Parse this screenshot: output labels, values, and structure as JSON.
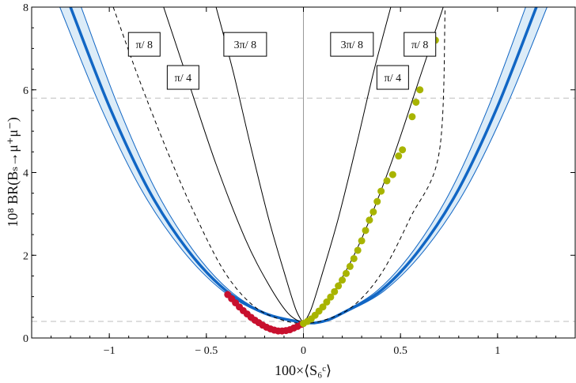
{
  "chart_data": {
    "type": "scatter",
    "title": "",
    "xlabel": "100×⟨S₆ᶜ⟩",
    "ylabel": "10⁸ BR(Bₛ→μ⁺μ⁻)",
    "xlim": [
      -1.4,
      1.4
    ],
    "ylim": [
      0,
      8
    ],
    "x_ticks": [
      -1,
      -0.5,
      0,
      0.5,
      1
    ],
    "x_tick_labels": [
      "−1",
      "− 0.5",
      "0",
      "0.5",
      "1"
    ],
    "y_ticks": [
      0,
      2,
      4,
      6,
      8
    ],
    "y_tick_labels": [
      "0",
      "2",
      "4",
      "6",
      "8"
    ],
    "reference_lines": {
      "horizontal_dashed_y": [
        0.4,
        5.8
      ],
      "vertical_solid_x": [
        0
      ]
    },
    "band": {
      "name": "",
      "color": "#1166c4",
      "fill": "#dcecf8",
      "center": [
        [
          -1.2,
          8.0
        ],
        [
          -1.0,
          5.6
        ],
        [
          -0.8,
          3.6
        ],
        [
          -0.6,
          2.15
        ],
        [
          -0.4,
          1.15
        ],
        [
          -0.2,
          0.6
        ],
        [
          0.0,
          0.38
        ],
        [
          0.1,
          0.4
        ],
        [
          0.2,
          0.6
        ],
        [
          0.4,
          1.15
        ],
        [
          0.6,
          2.15
        ],
        [
          0.8,
          3.6
        ],
        [
          1.0,
          5.6
        ],
        [
          1.2,
          8.0
        ]
      ],
      "half_width_x": [
        0.0,
        0.055
      ]
    },
    "curves": [
      {
        "label": "π/ 8",
        "side": "left",
        "style": "dashed",
        "points": [
          [
            -0.98,
            8.0
          ],
          [
            -0.85,
            6.3
          ],
          [
            -0.7,
            4.5
          ],
          [
            -0.55,
            2.9
          ],
          [
            -0.4,
            1.55
          ],
          [
            -0.25,
            0.75
          ],
          [
            -0.1,
            0.42
          ],
          [
            0.0,
            0.35
          ]
        ]
      },
      {
        "label": "π/ 4",
        "side": "left",
        "style": "solid",
        "points": [
          [
            -0.72,
            8.0
          ],
          [
            -0.6,
            6.3
          ],
          [
            -0.45,
            4.2
          ],
          [
            -0.3,
            2.4
          ],
          [
            -0.18,
            1.3
          ],
          [
            -0.08,
            0.6
          ],
          [
            0.0,
            0.35
          ]
        ]
      },
      {
        "label": "3π/ 8",
        "side": "left",
        "style": "solid",
        "points": [
          [
            -0.45,
            8.0
          ],
          [
            -0.36,
            6.4
          ],
          [
            -0.27,
            4.6
          ],
          [
            -0.18,
            2.9
          ],
          [
            -0.1,
            1.6
          ],
          [
            -0.04,
            0.7
          ],
          [
            0.0,
            0.35
          ]
        ]
      },
      {
        "label": "3π/ 8",
        "side": "right",
        "style": "solid",
        "points": [
          [
            0.0,
            0.35
          ],
          [
            0.04,
            0.7
          ],
          [
            0.1,
            1.6
          ],
          [
            0.18,
            2.9
          ],
          [
            0.27,
            4.6
          ],
          [
            0.36,
            6.4
          ],
          [
            0.45,
            8.0
          ]
        ]
      },
      {
        "label": "π/ 4",
        "side": "right",
        "style": "solid",
        "points": [
          [
            0.0,
            0.35
          ],
          [
            0.08,
            0.6
          ],
          [
            0.18,
            1.3
          ],
          [
            0.3,
            2.4
          ],
          [
            0.45,
            4.2
          ],
          [
            0.6,
            6.3
          ],
          [
            0.72,
            8.0
          ]
        ]
      },
      {
        "label": "π/ 8",
        "side": "right",
        "style": "dashed",
        "points": [
          [
            0.0,
            0.35
          ],
          [
            0.1,
            0.42
          ],
          [
            0.25,
            0.75
          ],
          [
            0.4,
            1.55
          ],
          [
            0.55,
            2.9
          ],
          [
            0.7,
            4.5
          ],
          [
            0.73,
            8.0
          ]
        ]
      }
    ],
    "annotations": [
      {
        "text": "π/ 8",
        "x": -0.82,
        "y": 7.1
      },
      {
        "text": "π/ 4",
        "x": -0.62,
        "y": 6.3
      },
      {
        "text": "3π/ 8",
        "x": -0.3,
        "y": 7.1
      },
      {
        "text": "3π/ 8",
        "x": 0.25,
        "y": 7.1
      },
      {
        "text": "π/ 4",
        "x": 0.46,
        "y": 6.3
      },
      {
        "text": "π/ 8",
        "x": 0.6,
        "y": 7.1
      }
    ],
    "series": [
      {
        "name": "",
        "color": "#c8102e",
        "points": [
          [
            -0.39,
            1.05
          ],
          [
            -0.37,
            0.95
          ],
          [
            -0.35,
            0.85
          ],
          [
            -0.33,
            0.75
          ],
          [
            -0.31,
            0.66
          ],
          [
            -0.29,
            0.58
          ],
          [
            -0.27,
            0.5
          ],
          [
            -0.25,
            0.43
          ],
          [
            -0.23,
            0.37
          ],
          [
            -0.21,
            0.31
          ],
          [
            -0.19,
            0.26
          ],
          [
            -0.17,
            0.22
          ],
          [
            -0.15,
            0.19
          ],
          [
            -0.13,
            0.17
          ],
          [
            -0.11,
            0.17
          ],
          [
            -0.09,
            0.18
          ],
          [
            -0.07,
            0.2
          ],
          [
            -0.05,
            0.24
          ],
          [
            -0.03,
            0.28
          ],
          [
            -0.01,
            0.33
          ]
        ]
      },
      {
        "name": "",
        "color": "#a8b400",
        "points": [
          [
            0.0,
            0.35
          ],
          [
            0.02,
            0.4
          ],
          [
            0.04,
            0.46
          ],
          [
            0.06,
            0.55
          ],
          [
            0.08,
            0.65
          ],
          [
            0.1,
            0.75
          ],
          [
            0.12,
            0.87
          ],
          [
            0.14,
            0.99
          ],
          [
            0.16,
            1.12
          ],
          [
            0.18,
            1.26
          ],
          [
            0.2,
            1.4
          ],
          [
            0.22,
            1.56
          ],
          [
            0.24,
            1.73
          ],
          [
            0.26,
            1.92
          ],
          [
            0.28,
            2.12
          ],
          [
            0.3,
            2.35
          ],
          [
            0.32,
            2.6
          ],
          [
            0.34,
            2.85
          ],
          [
            0.36,
            3.05
          ],
          [
            0.38,
            3.3
          ],
          [
            0.4,
            3.55
          ],
          [
            0.43,
            3.8
          ],
          [
            0.46,
            3.95
          ],
          [
            0.49,
            4.4
          ],
          [
            0.51,
            4.55
          ],
          [
            0.56,
            5.35
          ],
          [
            0.58,
            5.7
          ],
          [
            0.6,
            6.0
          ],
          [
            0.62,
            6.95
          ],
          [
            0.68,
            7.2
          ]
        ]
      }
    ],
    "grid": false,
    "legend": "none"
  }
}
